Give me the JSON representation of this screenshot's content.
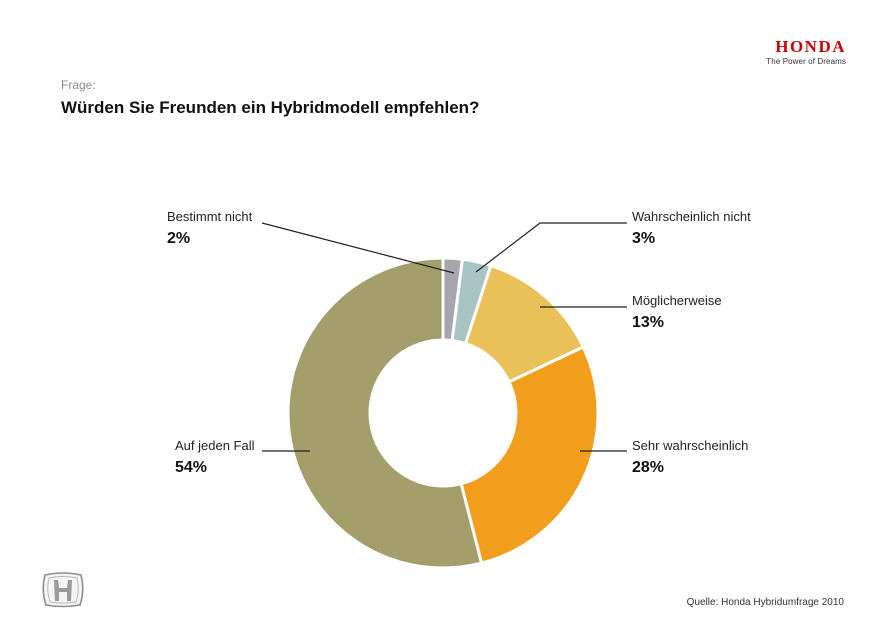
{
  "brand": {
    "wordmark": "HONDA",
    "slogan": "The Power of Dreams",
    "emblem_icon": "honda-h-emblem-icon",
    "accent_color": "#cc0000"
  },
  "question": {
    "label": "Frage:",
    "text": "Würden Sie Freunden ein Hybridmodell empfehlen?"
  },
  "source": "Quelle: Honda Hybridumfrage 2010",
  "chart_data": {
    "type": "pie",
    "variant": "donut",
    "start": "top, clockwise",
    "categories": [
      "Bestimmt nicht",
      "Wahrscheinlich nicht",
      "Möglicherweise",
      "Sehr wahrscheinlich",
      "Auf jeden Fall"
    ],
    "values": [
      2,
      3,
      13,
      28,
      54
    ],
    "value_labels": [
      "2%",
      "3%",
      "13%",
      "28%",
      "54%"
    ],
    "colors": [
      "#a7a5b0",
      "#a7c3c4",
      "#e9c158",
      "#f19e1c",
      "#a49e6b"
    ],
    "unit": "%"
  }
}
